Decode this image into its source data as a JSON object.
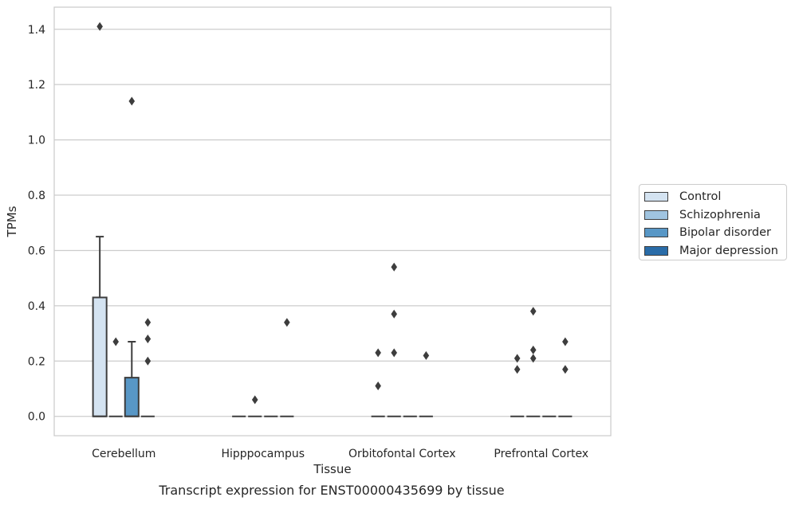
{
  "chart_data": {
    "type": "box",
    "xlabel": "Tissue",
    "ylabel": "TPMs",
    "caption": "Transcript expression for ENST00000435699 by tissue",
    "categories": [
      "Cerebellum",
      "Hipppocampus",
      "Orbitofontal Cortex",
      "Prefrontal Cortex"
    ],
    "ylim": [
      -0.07,
      1.48
    ],
    "yticks": [
      "0.0",
      "0.2",
      "0.4",
      "0.6",
      "0.8",
      "1.0",
      "1.2",
      "1.4"
    ],
    "grid": "horizontal",
    "legend_position": "right",
    "series": [
      {
        "name": "Control",
        "color": "#d4e3f1",
        "boxes": [
          {
            "q1": 0.0,
            "median": 0.0,
            "q3": 0.43,
            "whisker_low": 0.0,
            "whisker_high": 0.65,
            "outliers": [
              1.41
            ]
          },
          {
            "q1": 0.0,
            "median": 0.0,
            "q3": 0.0,
            "whisker_low": 0.0,
            "whisker_high": 0.0,
            "outliers": []
          },
          {
            "q1": 0.0,
            "median": 0.0,
            "q3": 0.0,
            "whisker_low": 0.0,
            "whisker_high": 0.0,
            "outliers": [
              0.23,
              0.11
            ]
          },
          {
            "q1": 0.0,
            "median": 0.0,
            "q3": 0.0,
            "whisker_low": 0.0,
            "whisker_high": 0.0,
            "outliers": [
              0.21,
              0.17
            ]
          }
        ]
      },
      {
        "name": "Schizophrenia",
        "color": "#a0c4e0",
        "boxes": [
          {
            "q1": 0.0,
            "median": 0.0,
            "q3": 0.0,
            "whisker_low": 0.0,
            "whisker_high": 0.0,
            "outliers": [
              0.27
            ]
          },
          {
            "q1": 0.0,
            "median": 0.0,
            "q3": 0.0,
            "whisker_low": 0.0,
            "whisker_high": 0.0,
            "outliers": [
              0.06
            ]
          },
          {
            "q1": 0.0,
            "median": 0.0,
            "q3": 0.0,
            "whisker_low": 0.0,
            "whisker_high": 0.0,
            "outliers": [
              0.54,
              0.37,
              0.23
            ]
          },
          {
            "q1": 0.0,
            "median": 0.0,
            "q3": 0.0,
            "whisker_low": 0.0,
            "whisker_high": 0.0,
            "outliers": [
              0.38,
              0.24,
              0.21
            ]
          }
        ]
      },
      {
        "name": "Bipolar disorder",
        "color": "#5897c6",
        "boxes": [
          {
            "q1": 0.0,
            "median": 0.0,
            "q3": 0.14,
            "whisker_low": 0.0,
            "whisker_high": 0.27,
            "outliers": [
              1.14
            ]
          },
          {
            "q1": 0.0,
            "median": 0.0,
            "q3": 0.0,
            "whisker_low": 0.0,
            "whisker_high": 0.0,
            "outliers": []
          },
          {
            "q1": 0.0,
            "median": 0.0,
            "q3": 0.0,
            "whisker_low": 0.0,
            "whisker_high": 0.0,
            "outliers": []
          },
          {
            "q1": 0.0,
            "median": 0.0,
            "q3": 0.0,
            "whisker_low": 0.0,
            "whisker_high": 0.0,
            "outliers": []
          }
        ]
      },
      {
        "name": "Major depression",
        "color": "#2a6ca8",
        "boxes": [
          {
            "q1": 0.0,
            "median": 0.0,
            "q3": 0.0,
            "whisker_low": 0.0,
            "whisker_high": 0.0,
            "outliers": [
              0.34,
              0.28,
              0.2
            ]
          },
          {
            "q1": 0.0,
            "median": 0.0,
            "q3": 0.0,
            "whisker_low": 0.0,
            "whisker_high": 0.0,
            "outliers": [
              0.34
            ]
          },
          {
            "q1": 0.0,
            "median": 0.0,
            "q3": 0.0,
            "whisker_low": 0.0,
            "whisker_high": 0.0,
            "outliers": [
              0.22
            ]
          },
          {
            "q1": 0.0,
            "median": 0.0,
            "q3": 0.0,
            "whisker_low": 0.0,
            "whisker_high": 0.0,
            "outliers": [
              0.27,
              0.17
            ]
          }
        ]
      }
    ]
  }
}
